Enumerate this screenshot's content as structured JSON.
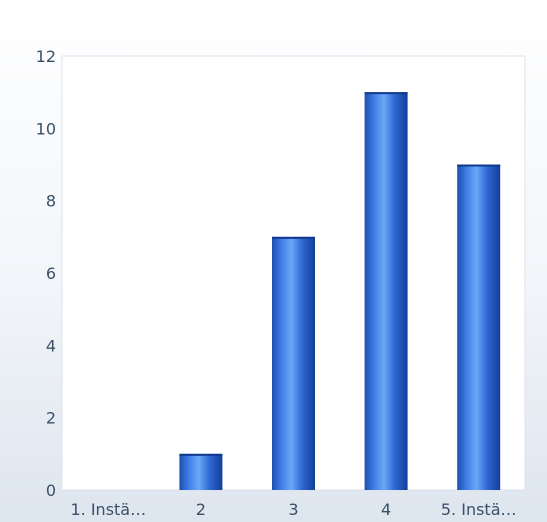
{
  "chart_data": {
    "type": "bar",
    "categories": [
      "1. Instä…",
      "2",
      "3",
      "4",
      "5. Instä…"
    ],
    "values": [
      0,
      1,
      7,
      11,
      9
    ],
    "ylim": [
      0,
      12
    ],
    "yticks": [
      0,
      2,
      4,
      6,
      8,
      10,
      12
    ],
    "grid": false,
    "colors": {
      "bar_dark": "#1747a8",
      "bar_light": "#5e9cf5",
      "plot_border": "#dbe2ea",
      "tick_text": "#3b5068"
    }
  }
}
